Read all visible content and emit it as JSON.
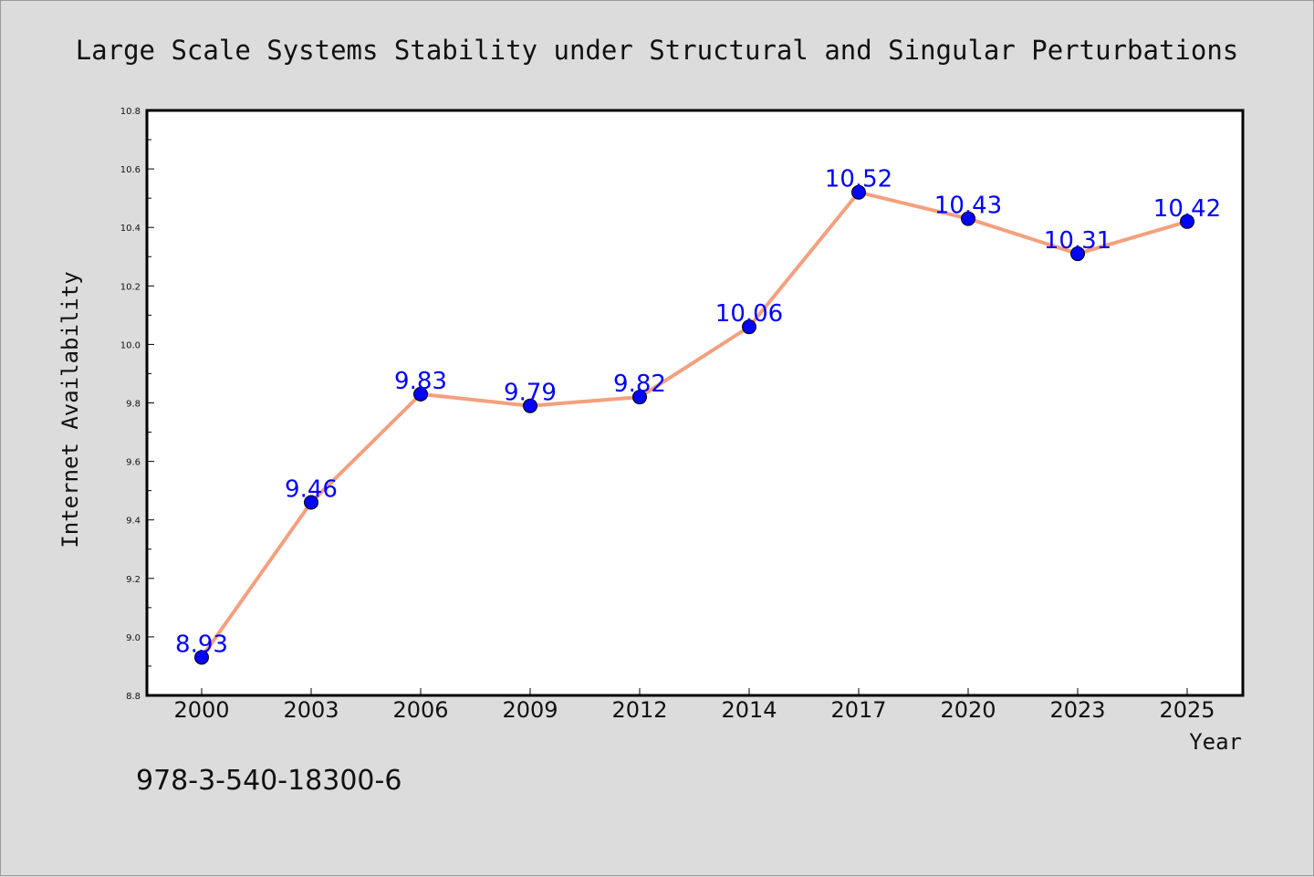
{
  "chart_data": {
    "type": "line",
    "title": "Large Scale Systems Stability under Structural and Singular Perturbations",
    "xlabel": "Year",
    "ylabel": "Internet Availability",
    "categories": [
      "2000",
      "2003",
      "2006",
      "2009",
      "2012",
      "2014",
      "2017",
      "2020",
      "2023",
      "2025"
    ],
    "values": [
      8.93,
      9.46,
      9.83,
      9.79,
      9.82,
      10.06,
      10.52,
      10.43,
      10.31,
      10.42
    ],
    "data_labels": [
      "8.93",
      "9.46",
      "9.83",
      "9.79",
      "9.82",
      "10.06",
      "10.52",
      "10.43",
      "10.31",
      "10.42"
    ],
    "ylim": [
      8.8,
      10.8
    ],
    "yticks": [
      "8.8",
      "9.0",
      "9.2",
      "9.4",
      "9.6",
      "9.8",
      "10.0",
      "10.2",
      "10.4",
      "10.6",
      "10.8"
    ],
    "grid": false,
    "legend": "none",
    "line_color": "#f4a07e",
    "marker_color": "#0000ff",
    "label_color": "#0000ff"
  },
  "footer": {
    "text": "978-3-540-18300-6"
  }
}
